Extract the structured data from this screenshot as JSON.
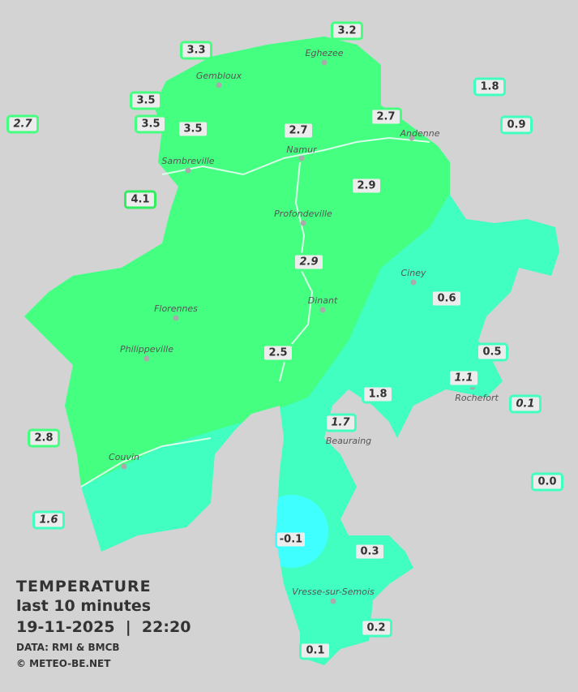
{
  "colors": {
    "background": "#d3d3d3",
    "warm": "#44ff80",
    "mild": "#40ffc0",
    "cold": "#40ffff"
  },
  "legend": {
    "title": "TEMPERATURE",
    "subtitle": "last 10 minutes",
    "datetime": "19-11-2025  |  22:20",
    "source": "DATA: RMI & BMCB",
    "copyright": "© METEO-BE.NET"
  },
  "towns": [
    "Eghezee",
    "Gembloux",
    "Andenne",
    "Namur",
    "Sambreville",
    "Profondeville",
    "Ciney",
    "Dinant",
    "Florennes",
    "Philippeville",
    "Rochefort",
    "Beauraing",
    "Couvin",
    "Vresse-sur-Semois"
  ],
  "readings": [
    {
      "value": "3.2",
      "italic": false,
      "color": "#44ff80"
    },
    {
      "value": "3.3",
      "italic": false,
      "color": "#44ff80"
    },
    {
      "value": "1.8",
      "italic": false,
      "color": "#40ffc0"
    },
    {
      "value": "3.5",
      "italic": false,
      "color": "#44ff80"
    },
    {
      "value": "2.7",
      "italic": true,
      "color": "#44ff80"
    },
    {
      "value": "3.5",
      "italic": false,
      "color": "#44ff80"
    },
    {
      "value": "3.5",
      "italic": false,
      "color": "#44ff80"
    },
    {
      "value": "2.7",
      "italic": false,
      "color": "#44ff80"
    },
    {
      "value": "2.7",
      "italic": false,
      "color": "#44ff80"
    },
    {
      "value": "0.9",
      "italic": false,
      "color": "#40ffc0"
    },
    {
      "value": "2.9",
      "italic": false,
      "color": "#44ff80"
    },
    {
      "value": "4.1",
      "italic": false,
      "color": "#30ee60"
    },
    {
      "value": "2.9",
      "italic": true,
      "color": "#44ff80"
    },
    {
      "value": "0.6",
      "italic": false,
      "color": "#40ffc0"
    },
    {
      "value": "2.5",
      "italic": false,
      "color": "#44ff80"
    },
    {
      "value": "0.5",
      "italic": false,
      "color": "#40ffc0"
    },
    {
      "value": "1.1",
      "italic": true,
      "color": "#40ffc0"
    },
    {
      "value": "0.1",
      "italic": true,
      "color": "#40ffc0"
    },
    {
      "value": "1.8",
      "italic": false,
      "color": "#40ffc0"
    },
    {
      "value": "1.7",
      "italic": true,
      "color": "#40ffc0"
    },
    {
      "value": "2.8",
      "italic": false,
      "color": "#44ff80"
    },
    {
      "value": "0.0",
      "italic": false,
      "color": "#40ffc0"
    },
    {
      "value": "1.6",
      "italic": true,
      "color": "#40ffc0"
    },
    {
      "value": "-0.1",
      "italic": false,
      "color": "#40ffff"
    },
    {
      "value": "0.3",
      "italic": false,
      "color": "#40ffc0"
    },
    {
      "value": "0.2",
      "italic": false,
      "color": "#40ffc0"
    },
    {
      "value": "0.1",
      "italic": false,
      "color": "#40ffc0"
    }
  ]
}
